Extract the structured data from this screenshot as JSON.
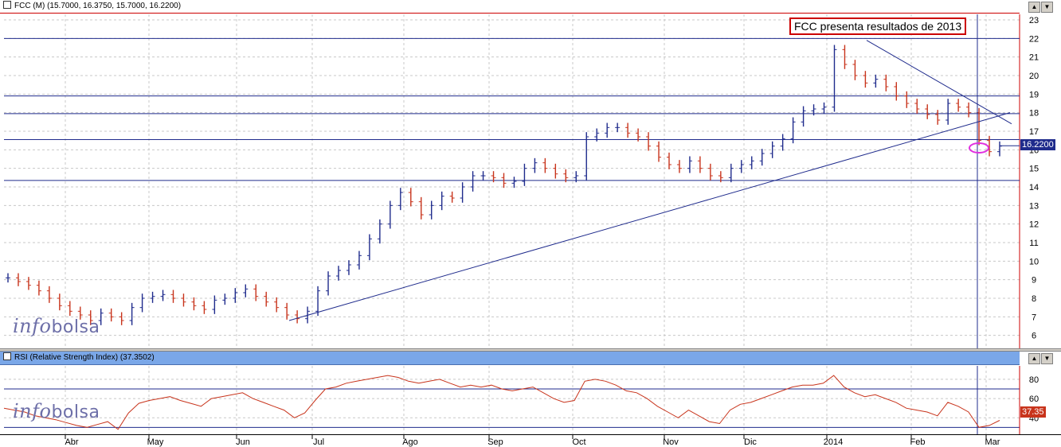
{
  "main_title": "FCC (M) (15.7000, 16.3750, 15.7000, 16.2200)",
  "rsi_title": "RSI (Relative Strength Index) (37.3502)",
  "annotation": "FCC presenta resultados de 2013",
  "watermark": {
    "pre": "info",
    "post": "bolsa"
  },
  "last_price_label": "16.2200",
  "last_rsi_label": "37.35",
  "colors": {
    "up": "#1f2b8c",
    "down": "#c8341c",
    "line": "#1f2b8c",
    "rsi": "#c8341c",
    "accent": "#c00000",
    "highlight": "#e030e0"
  },
  "chart_data": [
    {
      "type": "ohlc",
      "ylim": [
        5.3,
        23.3
      ],
      "y_ticks": [
        6,
        7,
        8,
        9,
        10,
        11,
        12,
        13,
        14,
        15,
        16,
        17,
        18,
        19,
        20,
        21,
        22,
        23
      ],
      "x_labels": [
        "Abr",
        "May",
        "Jun",
        "Jul",
        "Ago",
        "Sep",
        "Oct",
        "Nov",
        "Dic",
        "2014",
        "Feb",
        "Mar"
      ],
      "horizontal_lines": [
        22,
        18.9,
        17.95,
        16.55,
        14.35
      ],
      "trendlines": [
        {
          "from": [
            "Jun",
            6.8
          ],
          "to": [
            "Mar",
            18.0
          ]
        },
        {
          "from": [
            "2014",
            21.9
          ],
          "to": [
            "Mar",
            17.4
          ]
        }
      ],
      "last": 16.22,
      "series": [
        {
          "values": [
            9.1,
            8.9,
            8.7,
            8.4,
            8.0,
            7.6,
            7.3,
            7.1,
            6.8,
            7.2,
            7.0,
            6.8,
            7.5,
            8.0,
            8.1,
            8.2,
            8.0,
            7.8,
            7.6,
            7.4,
            7.9,
            8.0,
            8.3,
            8.5,
            8.1,
            7.8,
            7.5,
            7.1,
            6.9,
            7.3,
            8.4,
            9.2,
            9.5,
            9.8,
            10.3,
            11.2,
            12.0,
            13.0,
            13.7,
            13.2,
            12.5,
            13.0,
            13.5,
            13.4,
            14.0,
            14.6,
            14.6,
            14.5,
            14.2,
            14.3,
            15.0,
            15.3,
            15.0,
            14.7,
            14.5,
            14.6,
            16.7,
            16.9,
            17.2,
            17.2,
            16.9,
            16.7,
            16.2,
            15.6,
            15.2,
            15.0,
            15.4,
            15.0,
            14.6,
            14.5,
            15.0,
            15.2,
            15.4,
            15.8,
            16.2,
            16.6,
            17.5,
            18.1,
            18.2,
            18.3,
            21.4,
            20.6,
            20.0,
            19.6,
            19.8,
            19.4,
            18.9,
            18.5,
            18.2,
            17.9,
            17.6,
            18.5,
            18.3,
            18.0,
            16.5,
            15.9,
            16.2
          ]
        }
      ]
    },
    {
      "type": "line",
      "name": "RSI",
      "ylim": [
        22,
        94
      ],
      "y_ticks": [
        40,
        60,
        80
      ],
      "levels": [
        70,
        30
      ],
      "last": 37.35,
      "series": [
        {
          "values": [
            50,
            48,
            46,
            42,
            40,
            38,
            35,
            32,
            30,
            33,
            36,
            28,
            45,
            55,
            58,
            60,
            62,
            58,
            55,
            52,
            60,
            62,
            64,
            66,
            60,
            56,
            52,
            48,
            40,
            45,
            58,
            70,
            72,
            76,
            78,
            80,
            82,
            84,
            82,
            78,
            76,
            78,
            80,
            76,
            72,
            74,
            72,
            74,
            70,
            68,
            70,
            72,
            66,
            60,
            56,
            58,
            78,
            80,
            78,
            74,
            68,
            66,
            60,
            52,
            46,
            40,
            48,
            42,
            36,
            34,
            48,
            54,
            56,
            60,
            64,
            68,
            72,
            74,
            74,
            76,
            84,
            72,
            66,
            62,
            64,
            60,
            56,
            50,
            48,
            46,
            42,
            56,
            52,
            46,
            30,
            32,
            37.35
          ]
        }
      ]
    }
  ]
}
